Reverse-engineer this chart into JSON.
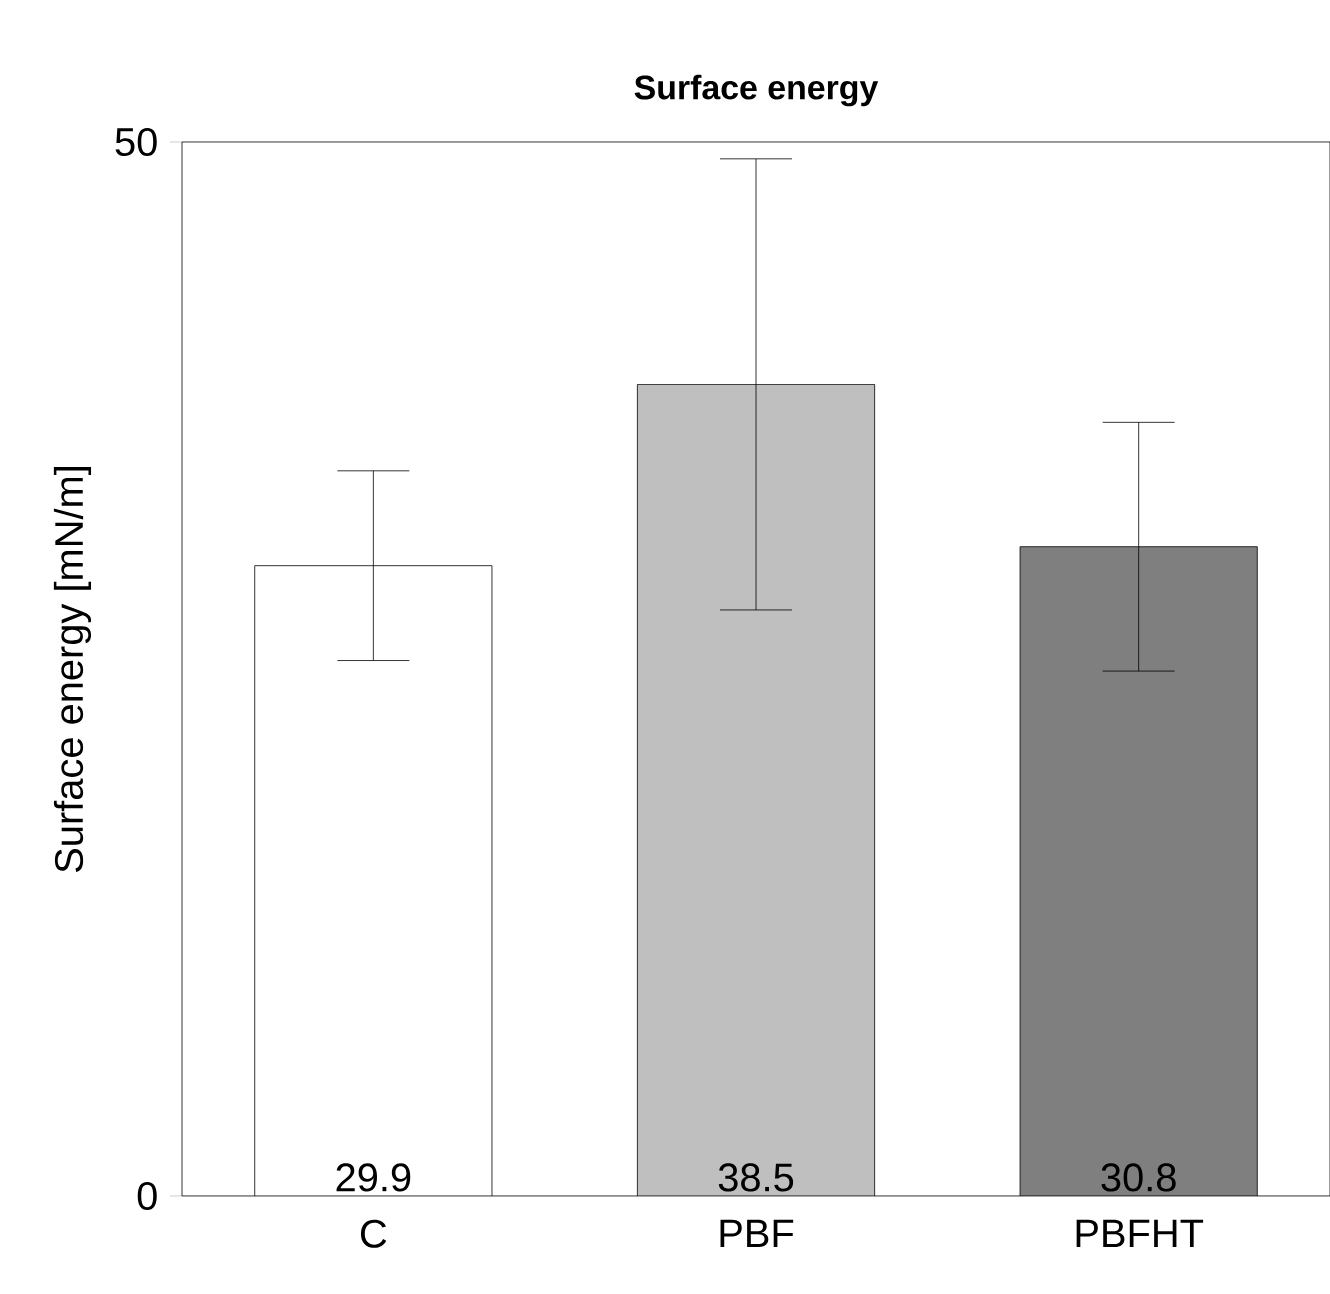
{
  "chart_data": {
    "type": "bar",
    "title": "Surface energy",
    "ylabel": "Surface energy [mN/m]",
    "categories": [
      "C",
      "PBF",
      "PBFHT"
    ],
    "values": [
      29.9,
      38.5,
      30.8
    ],
    "errors": [
      4.5,
      10.7,
      5.9
    ],
    "colors": [
      "#ffffff",
      "#bfbfbf",
      "#7f7f7f"
    ],
    "ylim": [
      0,
      50
    ],
    "yticks": [
      0,
      50
    ],
    "data_labels": true,
    "grid": false
  }
}
